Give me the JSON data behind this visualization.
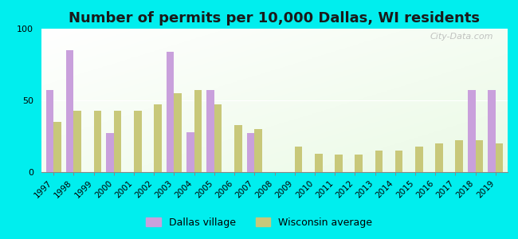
{
  "title": "Number of permits per 10,000 Dallas, WI residents",
  "years": [
    1997,
    1998,
    1999,
    2000,
    2001,
    2002,
    2003,
    2004,
    2005,
    2006,
    2007,
    2008,
    2009,
    2010,
    2011,
    2012,
    2013,
    2014,
    2015,
    2016,
    2017,
    2018,
    2019
  ],
  "dallas_village": [
    57,
    85,
    0,
    27,
    0,
    0,
    84,
    28,
    57,
    0,
    27,
    0,
    0,
    0,
    0,
    0,
    0,
    0,
    0,
    0,
    0,
    57,
    57
  ],
  "wisconsin_avg": [
    35,
    43,
    43,
    43,
    43,
    47,
    55,
    57,
    47,
    33,
    30,
    0,
    18,
    13,
    12,
    12,
    15,
    15,
    18,
    20,
    22,
    22,
    20
  ],
  "dallas_color": "#c9a0dc",
  "wi_color": "#c8c87a",
  "bg_outer": "#00eeee",
  "ylim": [
    0,
    100
  ],
  "yticks": [
    0,
    50,
    100
  ],
  "title_fontsize": 13,
  "legend_labels": [
    "Dallas village",
    "Wisconsin average"
  ]
}
